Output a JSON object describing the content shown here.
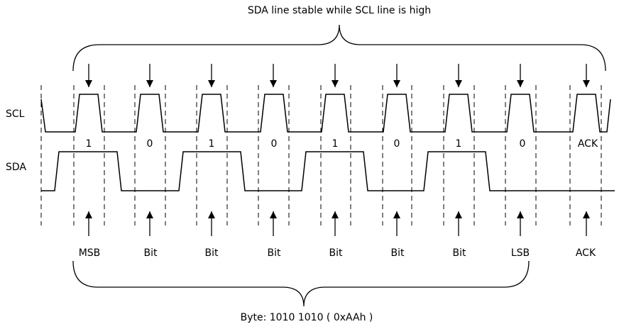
{
  "title_top": "SDA line stable while SCL line is high",
  "title_bottom": "Byte: 1010 1010 ( 0xAAh )",
  "signals": {
    "scl": "SCL",
    "sda": "SDA"
  },
  "bits": [
    "1",
    "0",
    "1",
    "0",
    "1",
    "0",
    "1",
    "0",
    "ACK"
  ],
  "bit_labels": [
    "MSB",
    "Bit",
    "Bit",
    "Bit",
    "Bit",
    "Bit",
    "Bit",
    "LSB",
    "ACK"
  ]
}
